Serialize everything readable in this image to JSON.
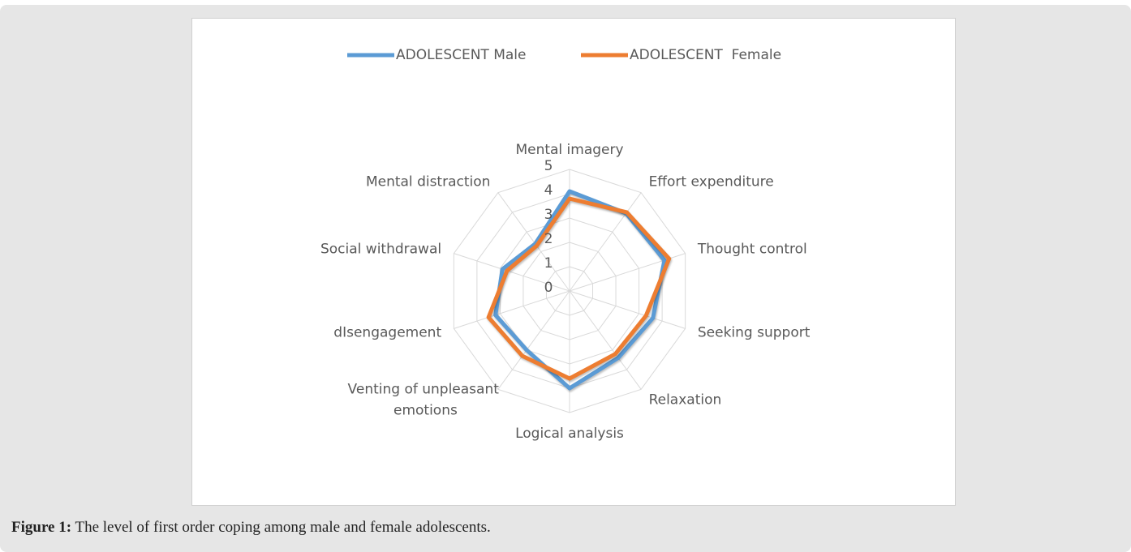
{
  "chart_data": {
    "type": "radar",
    "categories": [
      "Mental imagery",
      "Effort expenditure",
      "Thought control",
      "Seeking support",
      "Relaxation",
      "Logical analysis",
      "Venting of unpleasant emotions",
      "dIsengagement",
      "Social withdrawal",
      "Mental distraction"
    ],
    "series": [
      {
        "name": "ADOLESCENT Male",
        "color": "#5b9bd5",
        "values": [
          4.1,
          3.95,
          4.1,
          3.6,
          3.4,
          4.0,
          3.0,
          3.2,
          2.9,
          2.4
        ]
      },
      {
        "name": "ADOLESCENT  Female",
        "color": "#ed7d31",
        "values": [
          3.8,
          4.0,
          4.3,
          3.3,
          3.2,
          3.6,
          3.3,
          3.5,
          2.7,
          2.3
        ]
      }
    ],
    "rlim": [
      0,
      5
    ],
    "rticks": [
      0,
      1,
      2,
      3,
      4,
      5
    ],
    "grid": true,
    "legend": "top"
  },
  "caption": {
    "label": "Figure 1:",
    "text": " The level of first order coping among male and female adolescents."
  }
}
